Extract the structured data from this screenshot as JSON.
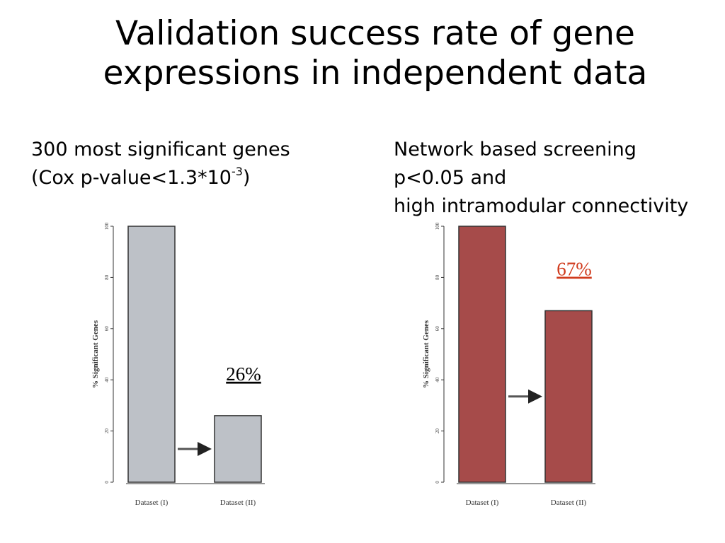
{
  "slide": {
    "title_line1": "Validation success rate of gene",
    "title_line2": "expressions in independent data",
    "left_heading": {
      "line1": "300 most significant genes",
      "line2_prefix": "(Cox p-value<1.3*10",
      "line2_sup": "-3",
      "line2_suffix": ")"
    },
    "right_heading": {
      "line1": "Network based screening",
      "line2": "p<0.05 and",
      "line3": "high intramodular connectivity"
    }
  },
  "chart_data": [
    {
      "type": "bar",
      "categories": [
        "Dataset (I)",
        "Dataset (II)"
      ],
      "values": [
        100,
        26
      ],
      "ylabel": "% Significant Genes",
      "ylim": [
        0,
        100
      ],
      "yticks": [
        0,
        20,
        40,
        60,
        80,
        100
      ],
      "annotation": "26%",
      "annotation_color": "#000000",
      "bar_color": "#bdc1c7",
      "arrow": "Dataset (I) → Dataset (II)"
    },
    {
      "type": "bar",
      "categories": [
        "Dataset (I)",
        "Dataset (II)"
      ],
      "values": [
        100,
        67
      ],
      "ylabel": "% Significant Genes",
      "ylim": [
        0,
        100
      ],
      "yticks": [
        0,
        20,
        40,
        60,
        80,
        100
      ],
      "annotation": "67%",
      "annotation_color": "#d03a1c",
      "bar_color": "#a64b4a",
      "arrow": "Dataset (I) → Dataset (II)"
    }
  ]
}
